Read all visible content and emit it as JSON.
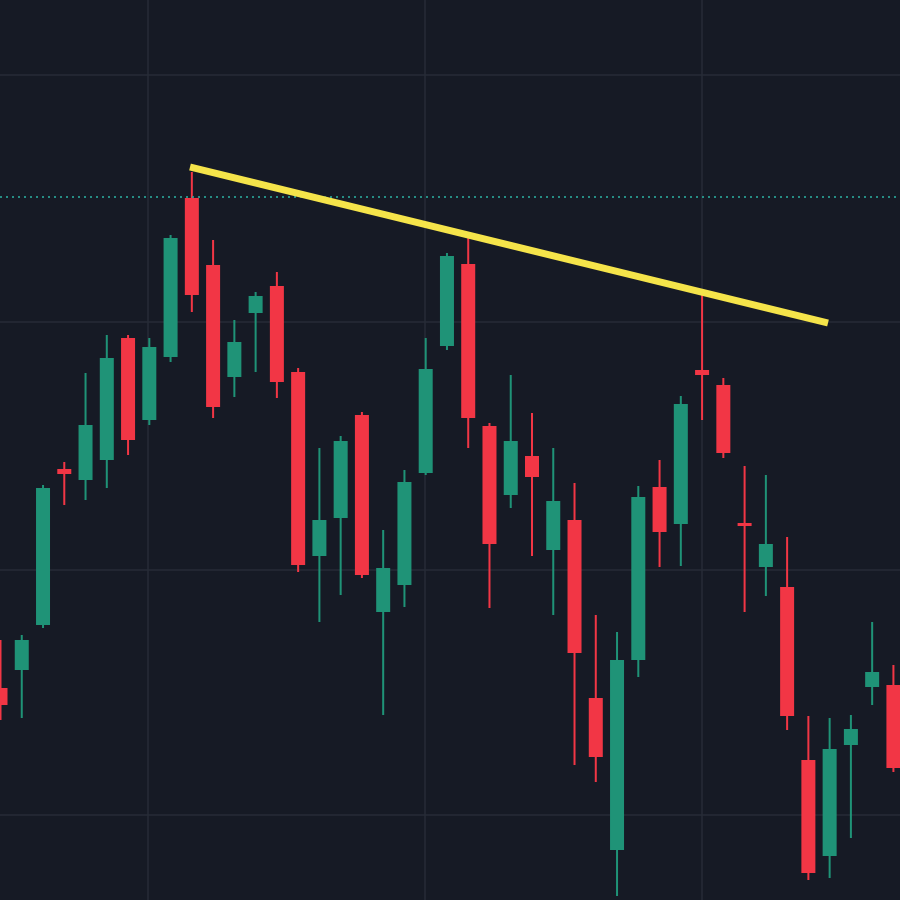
{
  "chart_data": {
    "type": "candlestick",
    "categories": [
      null,
      null,
      null,
      null,
      null,
      null,
      null,
      null,
      null,
      null,
      null,
      null,
      null,
      null,
      null,
      null,
      null,
      null,
      null,
      null,
      null,
      null,
      null,
      null,
      null,
      null,
      null,
      null,
      null,
      null,
      null,
      null,
      null,
      null,
      null,
      null,
      null,
      null,
      null,
      null,
      null,
      null,
      null
    ],
    "open": [
      212,
      230,
      275,
      431,
      420,
      440,
      562,
      480,
      543,
      702,
      635,
      523,
      587,
      614,
      528,
      344,
      382,
      485,
      288,
      315,
      427,
      554,
      636,
      474,
      405,
      444,
      350,
      380,
      202,
      50,
      240,
      413,
      376,
      530,
      515,
      377,
      333,
      313,
      140,
      44,
      155,
      213,
      215
    ],
    "high": [
      260,
      265,
      415,
      438,
      527,
      565,
      565,
      562,
      665,
      728,
      660,
      580,
      608,
      628,
      532,
      452,
      464,
      488,
      370,
      430,
      562,
      647,
      663,
      477,
      525,
      487,
      452,
      417,
      285,
      268,
      414,
      440,
      504,
      605,
      522,
      434,
      425,
      363,
      184,
      182,
      185,
      278,
      235
    ],
    "low": [
      180,
      182,
      272,
      395,
      400,
      412,
      445,
      475,
      538,
      588,
      482,
      503,
      528,
      502,
      328,
      278,
      305,
      322,
      185,
      293,
      425,
      550,
      452,
      292,
      392,
      344,
      285,
      135,
      118,
      4,
      223,
      333,
      334,
      480,
      442,
      288,
      304,
      170,
      20,
      22,
      62,
      195,
      128
    ],
    "close": [
      195,
      260,
      412,
      426,
      475,
      542,
      460,
      553,
      662,
      605,
      493,
      558,
      604,
      518,
      335,
      380,
      459,
      325,
      332,
      418,
      531,
      644,
      482,
      356,
      459,
      423,
      399,
      247,
      143,
      240,
      403,
      368,
      496,
      525,
      447,
      374,
      356,
      184,
      27,
      151,
      171,
      228,
      132
    ],
    "up_color": "#1f9377",
    "down_color": "#f23645",
    "ylim": [
      0,
      900
    ]
  }
}
